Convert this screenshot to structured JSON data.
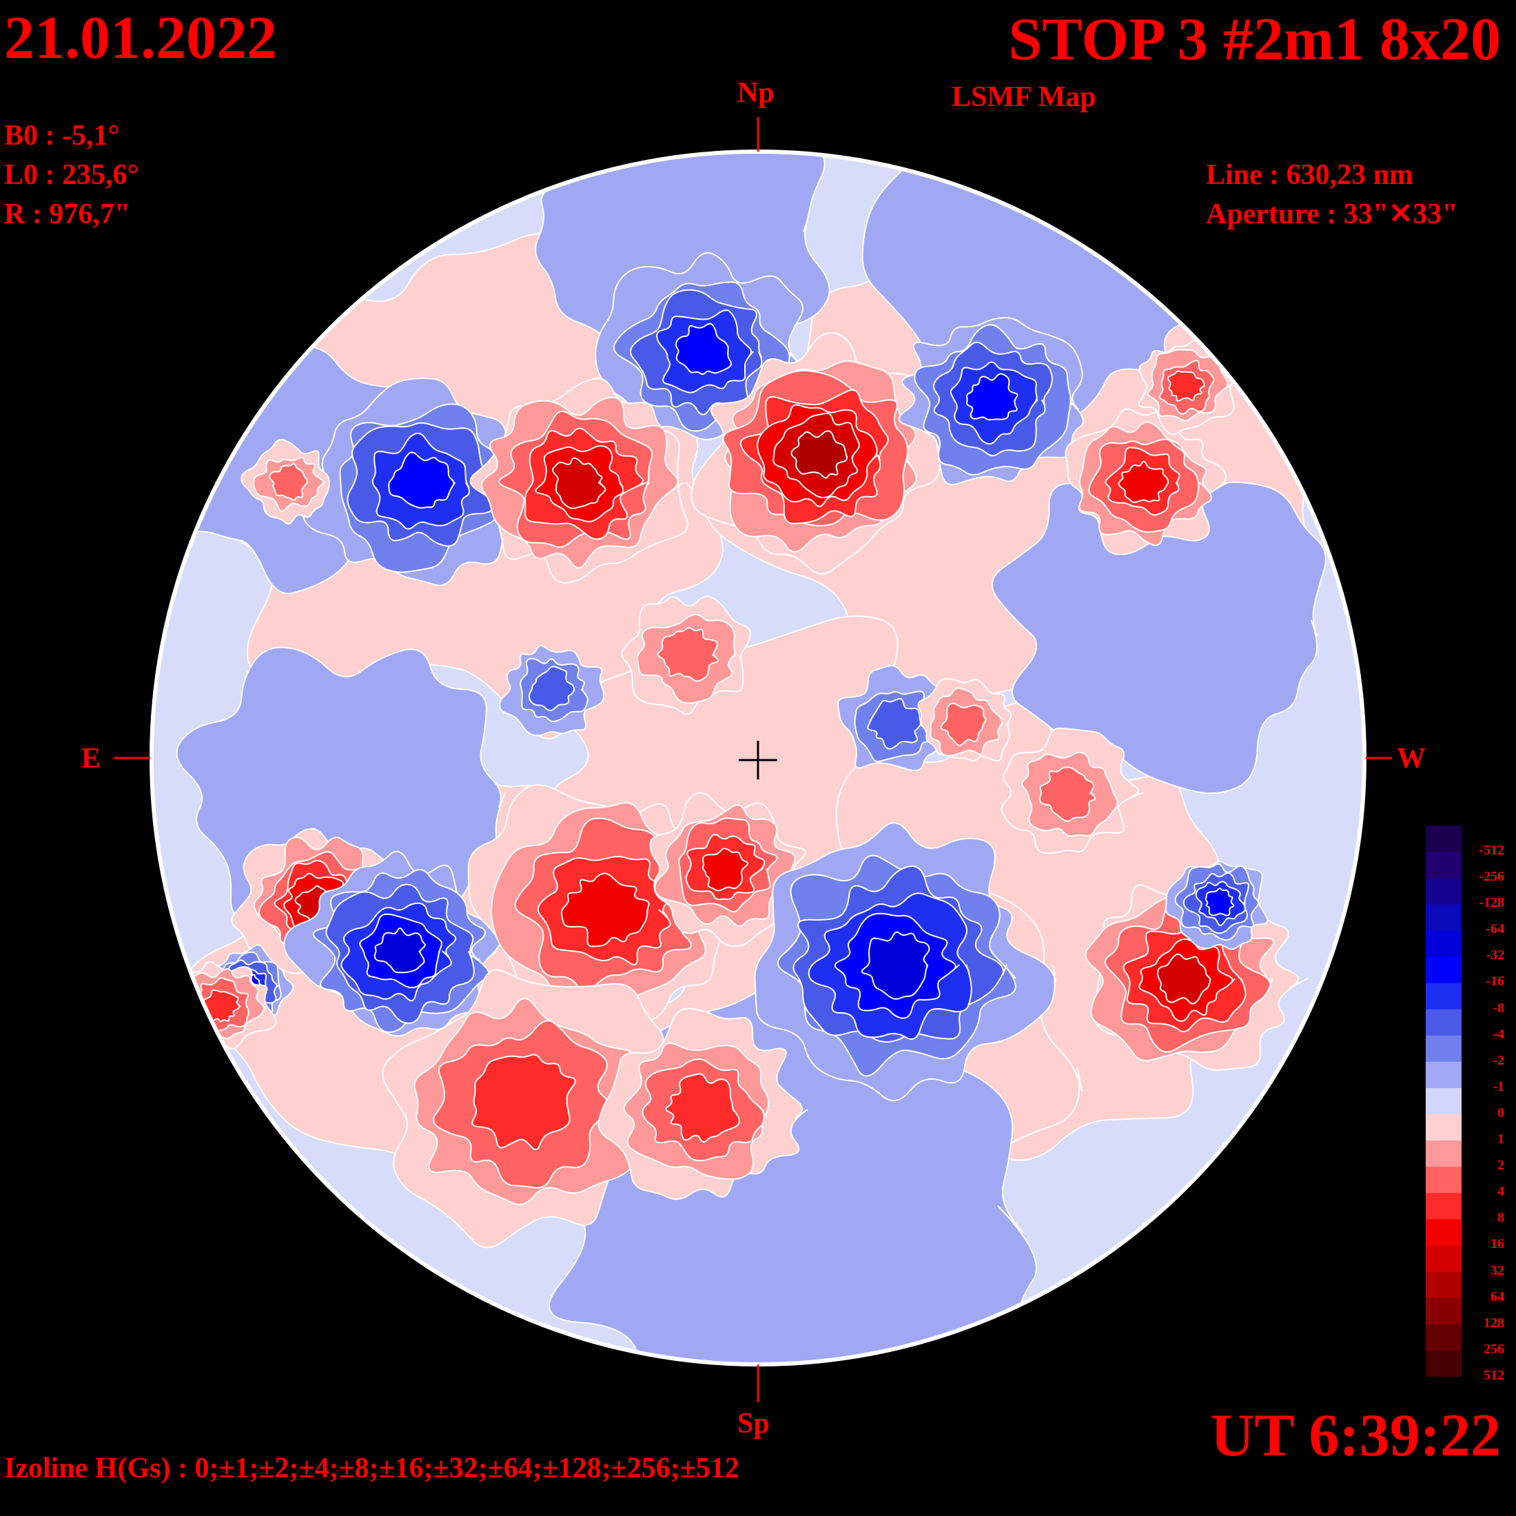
{
  "header": {
    "date": "21.01.2022",
    "title": "STOP 3 #2m1 8x20",
    "subtitle": "LSMF  Map"
  },
  "params": {
    "b0": "B0 : -5,1°",
    "l0": "L0 : 235,6°",
    "r": "R  : 976,7\"",
    "line": "Line :  630,23 nm",
    "aperture": "Aperture : 33\"✕33\""
  },
  "compass": {
    "north": "Np",
    "south": "Sp",
    "east": "E",
    "west": "W"
  },
  "footer": {
    "ut": "UT 6:39:22",
    "izoline": "Izoline H(Gs) : 0;±1;±2;±4;±8;±16;±32;±64;±128;±256;±512"
  },
  "chart_data": {
    "type": "heatmap",
    "description_units": "Gs",
    "colorbar": {
      "labels": [
        "-512",
        "-256",
        "-128",
        "-64",
        "-32",
        "-16",
        "-8",
        "-4",
        "-2",
        "-1",
        "0",
        "1",
        "2",
        "4",
        "8",
        "16",
        "32",
        "64",
        "128",
        "256",
        "512"
      ],
      "colors": [
        "#1a0050",
        "#200070",
        "#150090",
        "#0b0ab8",
        "#0000d8",
        "#0000ff",
        "#1f2ff2",
        "#4a5ae8",
        "#7080ec",
        "#a0a8f4",
        "#d2d6fb",
        "#ffd0d0",
        "#ff9898",
        "#ff6262",
        "#ff2a2a",
        "#f20000",
        "#d40000",
        "#b00000",
        "#8a0000",
        "#660000",
        "#480000"
      ]
    },
    "regions": [
      {
        "sign": "negative",
        "level": -64,
        "location": "north-center"
      },
      {
        "sign": "negative",
        "level": -64,
        "location": "north-east"
      },
      {
        "sign": "positive",
        "level": 64,
        "location": "north-center-east"
      },
      {
        "sign": "positive",
        "level": 128,
        "location": "north-center-west"
      },
      {
        "sign": "negative",
        "level": -32,
        "location": "north-west"
      },
      {
        "sign": "positive",
        "level": 32,
        "location": "north-west limb"
      },
      {
        "sign": "positive",
        "level": 64,
        "location": "south-east"
      },
      {
        "sign": "negative",
        "level": -64,
        "location": "south-east"
      },
      {
        "sign": "positive",
        "level": 32,
        "location": "south-center"
      },
      {
        "sign": "negative",
        "level": -64,
        "location": "south-center-west"
      },
      {
        "sign": "positive",
        "level": 64,
        "location": "south-west"
      },
      {
        "sign": "negative",
        "level": -16,
        "location": "south limb band"
      }
    ]
  }
}
